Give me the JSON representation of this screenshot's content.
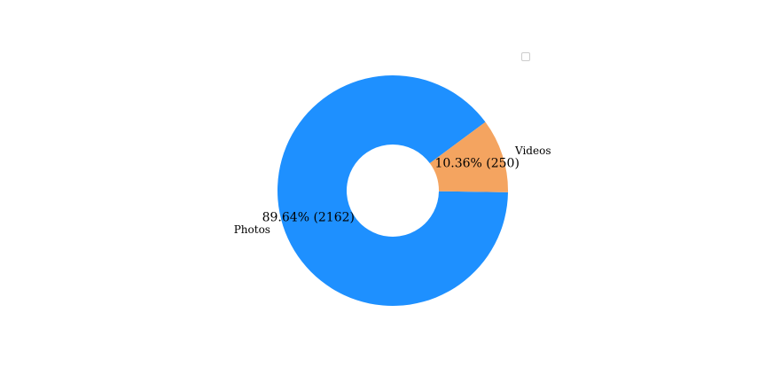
{
  "chart_data": {
    "type": "pie",
    "variant": "donut",
    "title": "",
    "categories": [
      "Photos",
      "Videos"
    ],
    "values": [
      2162,
      250
    ],
    "percent_labels": [
      "89.64%  (2162)",
      "10.36%  (250)"
    ],
    "colors": [
      "#1E90FF",
      "#F4A460"
    ],
    "legend": "top-right",
    "legend_entries": []
  }
}
